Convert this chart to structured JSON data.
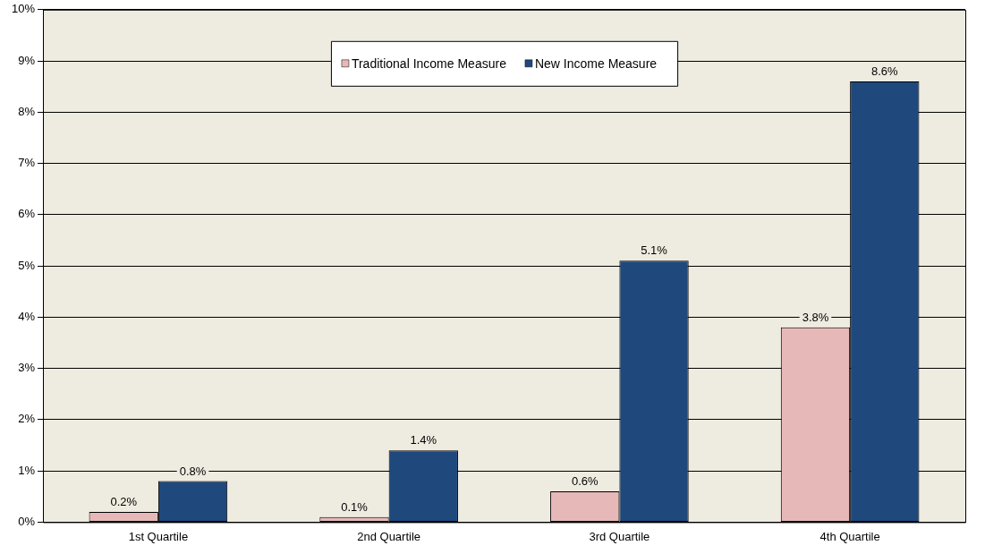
{
  "chart_data": {
    "type": "bar",
    "categories": [
      "1st Quartile",
      "2nd Quartile",
      "3rd Quartile",
      "4th Quartile"
    ],
    "series": [
      {
        "name": "Traditional Income Measure",
        "color": "#e6b9b8",
        "values": [
          0.2,
          0.1,
          0.6,
          3.8
        ],
        "value_labels": [
          "0.2%",
          "0.1%",
          "0.6%",
          "3.8%"
        ]
      },
      {
        "name": "New Income Measure",
        "color": "#1f497d",
        "values": [
          0.8,
          1.4,
          5.1,
          8.6
        ],
        "value_labels": [
          "0.8%",
          "1.4%",
          "5.1%",
          "8.6%"
        ]
      }
    ],
    "ylim": [
      0,
      10
    ],
    "yticks": [
      {
        "value": 0,
        "label": "0%"
      },
      {
        "value": 1,
        "label": "1%"
      },
      {
        "value": 2,
        "label": "2%"
      },
      {
        "value": 3,
        "label": "3%"
      },
      {
        "value": 4,
        "label": "4%"
      },
      {
        "value": 5,
        "label": "5%"
      },
      {
        "value": 6,
        "label": "6%"
      },
      {
        "value": 7,
        "label": "7%"
      },
      {
        "value": 8,
        "label": "8%"
      },
      {
        "value": 9,
        "label": "9%"
      },
      {
        "value": 10,
        "label": "10%"
      }
    ],
    "grid": "y",
    "legend": "top"
  }
}
